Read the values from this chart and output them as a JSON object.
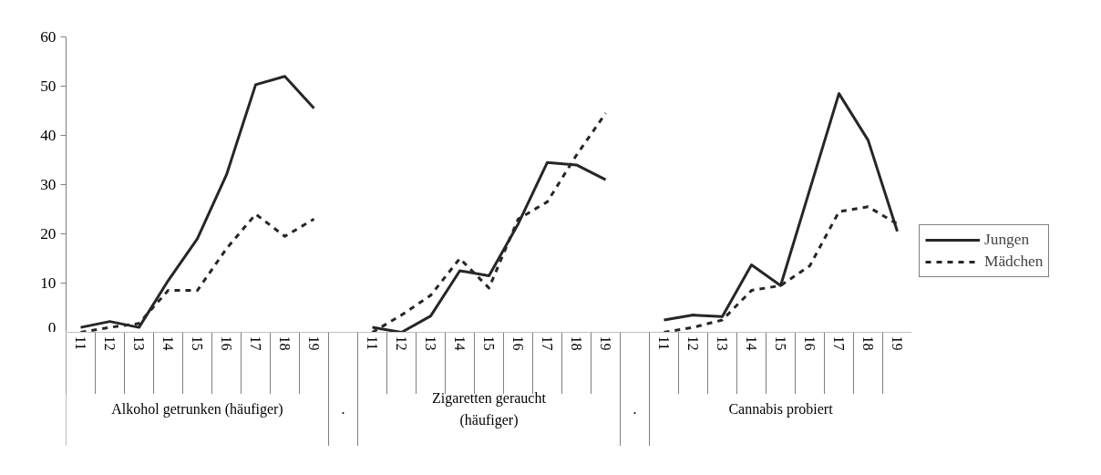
{
  "chart_data": {
    "type": "line",
    "categories": [
      "11",
      "12",
      "13",
      "14",
      "15",
      "16",
      "17",
      "18",
      "19",
      null,
      "11",
      "12",
      "13",
      "14",
      "15",
      "16",
      "17",
      "18",
      "19",
      null,
      "11",
      "12",
      "13",
      "14",
      "15",
      "16",
      "17",
      "18",
      "19"
    ],
    "annotations": [
      "Alkohol getrunken (häufiger)",
      ".",
      "Zigaretten geraucht\n(häufiger)",
      ".",
      "Cannabis probiert"
    ],
    "series": [
      {
        "name": "Jungen",
        "color": "#262626",
        "line_style": "solid",
        "values": [
          1,
          2.2,
          1,
          10.5,
          19,
          32,
          50.3,
          52,
          45.5,
          null,
          1,
          0,
          3.3,
          12.5,
          11.5,
          22,
          34.5,
          34,
          31,
          null,
          2.5,
          3.5,
          3.2,
          13.7,
          9.5,
          29,
          48.5,
          39,
          20.5
        ]
      },
      {
        "name": "Mädchen",
        "color": "#262626",
        "line_style": "dashed",
        "values": [
          0,
          1,
          1.8,
          8.5,
          8.5,
          17,
          24,
          19.5,
          23,
          null,
          0,
          3.5,
          7.5,
          15,
          9,
          23,
          26.5,
          36,
          44.5,
          null,
          0,
          1,
          2.5,
          8.5,
          9.5,
          13.5,
          24.5,
          25.5,
          22
        ]
      }
    ],
    "ylim": [
      0,
      60
    ],
    "yticks": [
      0,
      10,
      20,
      30,
      40,
      50,
      60
    ],
    "grid": false,
    "legend": "right"
  }
}
